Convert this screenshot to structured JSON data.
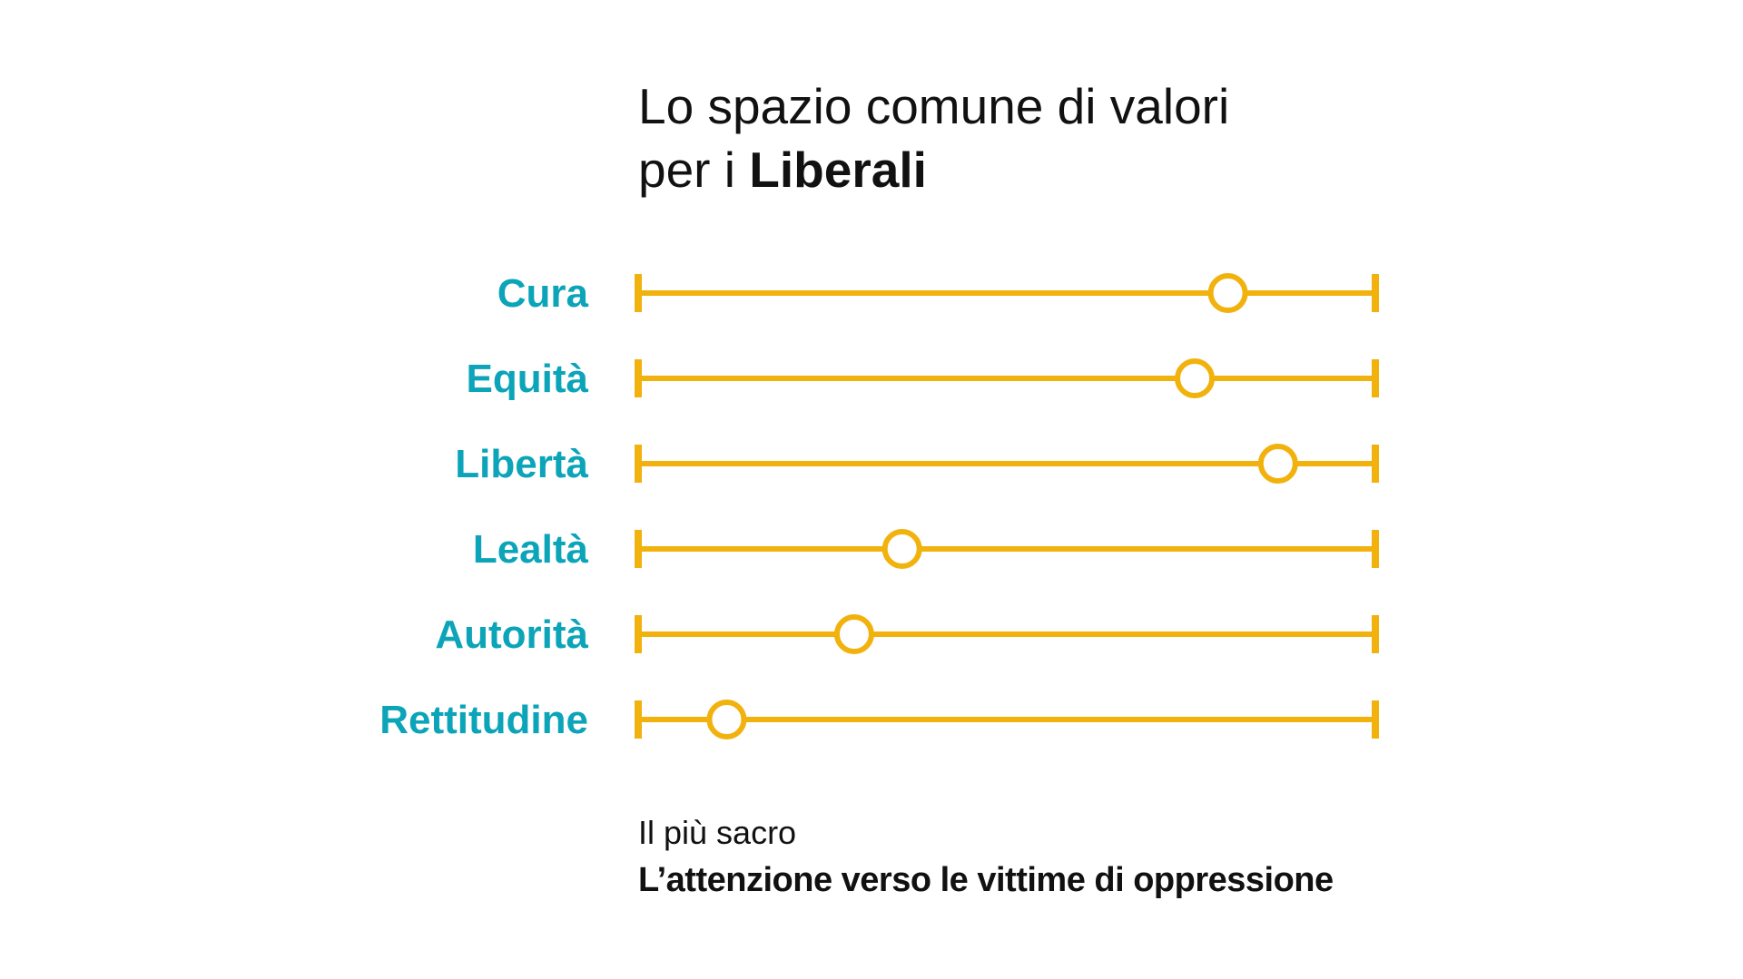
{
  "title": {
    "line1": "Lo spazio comune di valori",
    "line2_prefix": "per i ",
    "line2_bold": "Liberali"
  },
  "footer": {
    "subtitle": "Il più sacro",
    "text": "L’attenzione verso le vittime di oppressione"
  },
  "colors": {
    "line": "#F2B20E",
    "label": "#0BA4B8",
    "marker_fill": "#FFFFFF",
    "text": "#111111"
  },
  "chart_data": {
    "type": "scatter",
    "title": "Lo spazio comune di valori per i Liberali",
    "categories": [
      "Cura",
      "Equità",
      "Libertà",
      "Lealtà",
      "Autorità",
      "Rettitudine"
    ],
    "values": [
      0.8,
      0.755,
      0.868,
      0.358,
      0.293,
      0.12
    ],
    "xlim": [
      0,
      1
    ],
    "xlabel": "",
    "ylabel": "",
    "grid": false,
    "legend": "none",
    "marker": "open-circle"
  }
}
